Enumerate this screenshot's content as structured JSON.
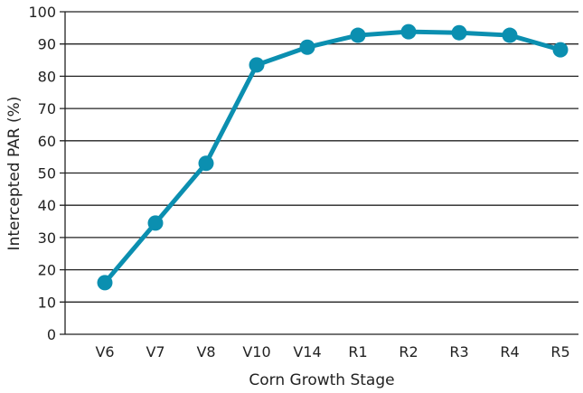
{
  "chart_data": {
    "type": "line",
    "title": "",
    "xlabel": "Corn Growth Stage",
    "ylabel": "Intercepted PAR (%)",
    "categories": [
      "V6",
      "V7",
      "V8",
      "V10",
      "V14",
      "R1",
      "R2",
      "R3",
      "R4",
      "R5"
    ],
    "values": [
      16,
      34.5,
      53,
      83.5,
      89,
      92.7,
      93.8,
      93.5,
      92.7,
      88.2
    ],
    "ylim": [
      0,
      100
    ],
    "yticks": [
      0,
      10,
      20,
      30,
      40,
      50,
      60,
      70,
      80,
      90,
      100
    ],
    "grid": true,
    "legend": "none",
    "color": "#0b8fb0"
  }
}
